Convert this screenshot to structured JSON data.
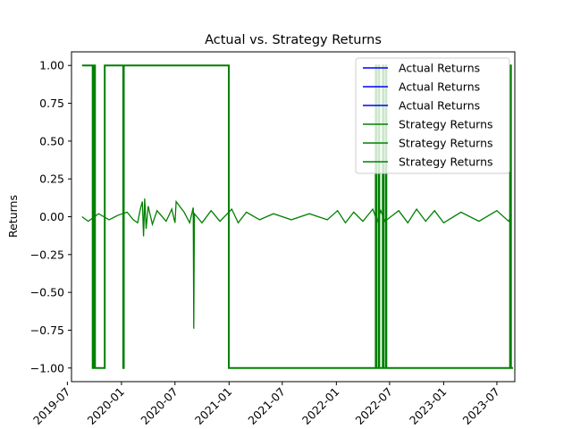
{
  "chart_data": {
    "type": "line",
    "title": "Actual vs. Strategy Returns",
    "xlabel": "",
    "ylabel": "Returns",
    "xlim": [
      "2019-07-15",
      "2023-08-31"
    ],
    "ylim": [
      -1.09,
      1.09
    ],
    "grid": false,
    "legend_position": "top-right",
    "x_ticks": [
      "2019-07",
      "2020-01",
      "2020-07",
      "2021-01",
      "2021-07",
      "2022-01",
      "2022-07",
      "2023-01",
      "2023-07"
    ],
    "y_ticks": [
      "1.00",
      "0.75",
      "0.50",
      "0.25",
      "0.00",
      "−0.25",
      "−0.50",
      "−0.75",
      "−1.00"
    ],
    "y_tick_values": [
      1.0,
      0.75,
      0.5,
      0.25,
      0.0,
      -0.25,
      -0.5,
      -0.75,
      -1.0
    ],
    "legend": [
      {
        "label": "Actual Returns",
        "color": "#0000ff"
      },
      {
        "label": "Actual Returns",
        "color": "#0000ff"
      },
      {
        "label": "Actual Returns",
        "color": "#0000ff"
      },
      {
        "label": "Strategy Returns",
        "color": "#008000"
      },
      {
        "label": "Strategy Returns",
        "color": "#008000"
      },
      {
        "label": "Strategy Returns",
        "color": "#008000"
      }
    ],
    "series": [
      {
        "color": "#008000",
        "style": "step",
        "x": [
          "2019-08-20",
          "2019-09-25",
          "2019-09-30",
          "2019-10-01",
          "2019-10-03",
          "2019-10-05",
          "2019-11-05",
          "2020-01-07",
          "2020-01-09",
          "2020-12-31",
          "2022-05-15",
          "2022-05-17",
          "2022-05-25",
          "2022-05-27",
          "2022-06-08",
          "2022-06-10",
          "2022-06-18",
          "2022-06-20",
          "2023-08-15",
          "2023-08-18",
          "2023-08-25"
        ],
        "values": [
          1.0,
          -1.0,
          1.0,
          1.0,
          -1.0,
          -1.0,
          1.0,
          -1.0,
          1.0,
          -1.0,
          1.0,
          -1.0,
          1.0,
          -1.0,
          1.0,
          -1.0,
          1.0,
          -1.0,
          1.0,
          -1.0,
          -1.0
        ]
      },
      {
        "color": "#008000",
        "style": "line",
        "x": [
          "2019-08-20",
          "2019-09-10",
          "2019-10-15",
          "2019-11-20",
          "2019-12-20",
          "2020-01-20",
          "2020-02-10",
          "2020-02-25",
          "2020-03-05",
          "2020-03-12",
          "2020-03-16",
          "2020-03-20",
          "2020-03-25",
          "2020-04-01",
          "2020-04-15",
          "2020-05-01",
          "2020-06-01",
          "2020-06-20",
          "2020-07-01",
          "2020-07-05",
          "2020-08-01",
          "2020-08-20",
          "2020-09-01",
          "2020-09-03",
          "2020-09-05",
          "2020-10-01",
          "2020-11-01",
          "2020-12-01",
          "2021-01-10",
          "2021-02-01",
          "2021-03-01",
          "2021-04-15",
          "2021-06-01",
          "2021-08-01",
          "2021-10-01",
          "2021-12-01",
          "2022-01-05",
          "2022-02-01",
          "2022-03-01",
          "2022-04-01",
          "2022-05-05",
          "2022-05-20",
          "2022-06-01",
          "2022-06-15",
          "2022-08-01",
          "2022-09-01",
          "2022-10-01",
          "2022-11-01",
          "2022-12-01",
          "2023-01-01",
          "2023-03-01",
          "2023-05-01",
          "2023-07-01",
          "2023-08-10",
          "2023-08-20"
        ],
        "values": [
          0.0,
          -0.03,
          0.02,
          -0.02,
          0.01,
          0.03,
          -0.02,
          -0.04,
          0.05,
          0.1,
          -0.13,
          0.12,
          -0.08,
          0.07,
          -0.05,
          0.04,
          -0.03,
          0.05,
          -0.04,
          0.1,
          0.03,
          -0.04,
          0.06,
          -0.74,
          0.02,
          -0.04,
          0.04,
          -0.03,
          0.05,
          -0.04,
          0.03,
          -0.02,
          0.02,
          -0.02,
          0.02,
          -0.02,
          0.04,
          -0.04,
          0.03,
          -0.03,
          0.05,
          -0.03,
          0.04,
          -0.03,
          0.04,
          -0.04,
          0.05,
          -0.03,
          0.04,
          -0.04,
          0.03,
          -0.03,
          0.04,
          -0.03,
          0.01
        ]
      }
    ]
  }
}
